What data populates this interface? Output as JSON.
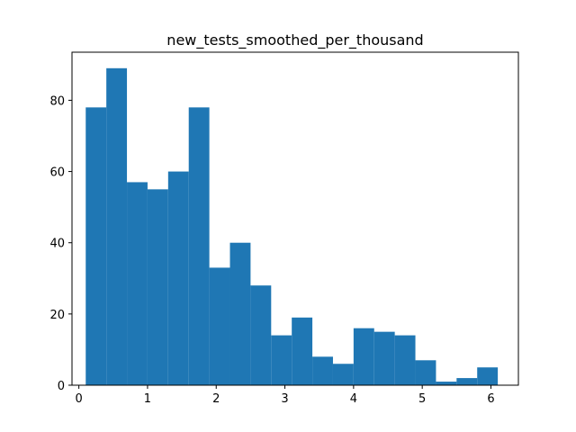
{
  "chart_data": {
    "type": "histogram",
    "title": "new_tests_smoothed_per_thousand",
    "xlabel": "",
    "ylabel": "",
    "bar_color": "#1f77b4",
    "xlim": [
      -0.1,
      6.4
    ],
    "ylim": [
      0,
      93.5
    ],
    "x_ticks": [
      0,
      1,
      2,
      3,
      4,
      5,
      6
    ],
    "y_ticks": [
      0,
      20,
      40,
      60,
      80
    ],
    "bin_edges": [
      0.1,
      0.4,
      0.7,
      1.0,
      1.3,
      1.6,
      1.9,
      2.2,
      2.5,
      2.8,
      3.1,
      3.4,
      3.7,
      4.0,
      4.3,
      4.6,
      4.9,
      5.2,
      5.5,
      5.8,
      6.1
    ],
    "counts": [
      78,
      89,
      57,
      55,
      60,
      78,
      33,
      40,
      28,
      14,
      19,
      8,
      6,
      16,
      15,
      14,
      7,
      1,
      2,
      5
    ],
    "grid": false,
    "legend": "none"
  }
}
